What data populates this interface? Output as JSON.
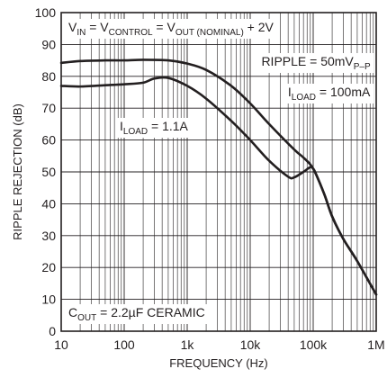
{
  "chart_data": {
    "type": "line",
    "xlabel": "FREQUENCY (Hz)",
    "ylabel": "RIPPLE REJECTION (dB)",
    "x_scale": "log",
    "xlim": [
      10,
      1000000
    ],
    "ylim": [
      0,
      100
    ],
    "grid": true,
    "x_ticks": [
      {
        "value": 10,
        "label": "10"
      },
      {
        "value": 100,
        "label": "100"
      },
      {
        "value": 1000,
        "label": "1k"
      },
      {
        "value": 10000,
        "label": "10k"
      },
      {
        "value": 100000,
        "label": "100k"
      },
      {
        "value": 1000000,
        "label": "1M"
      }
    ],
    "y_ticks": [
      {
        "value": 0,
        "label": "0"
      },
      {
        "value": 10,
        "label": "10"
      },
      {
        "value": 20,
        "label": "20"
      },
      {
        "value": 30,
        "label": "30"
      },
      {
        "value": 40,
        "label": "40"
      },
      {
        "value": 50,
        "label": "50"
      },
      {
        "value": 60,
        "label": "60"
      },
      {
        "value": 70,
        "label": "70"
      },
      {
        "value": 80,
        "label": "80"
      },
      {
        "value": 90,
        "label": "90"
      },
      {
        "value": 100,
        "label": "100"
      }
    ],
    "annotations": {
      "conditions": {
        "parts": [
          {
            "t": "V",
            "sub": false
          },
          {
            "t": "IN",
            "sub": true
          },
          {
            "t": " = V",
            "sub": false
          },
          {
            "t": "CONTROL",
            "sub": true
          },
          {
            "t": " = V",
            "sub": false
          },
          {
            "t": "OUT (NOMINAL)",
            "sub": true
          },
          {
            "t": " + 2V",
            "sub": false
          }
        ]
      },
      "ripple": {
        "parts": [
          {
            "t": "RIPPLE = 50mV",
            "sub": false
          },
          {
            "t": "P–P",
            "sub": true
          }
        ]
      },
      "iload_100ma": {
        "parts": [
          {
            "t": "I",
            "sub": false
          },
          {
            "t": "LOAD",
            "sub": true
          },
          {
            "t": " = 100mA",
            "sub": false
          }
        ]
      },
      "iload_1_1a": {
        "parts": [
          {
            "t": "I",
            "sub": false
          },
          {
            "t": "LOAD",
            "sub": true
          },
          {
            "t": " = 1.1A",
            "sub": false
          }
        ]
      },
      "cout": {
        "parts": [
          {
            "t": "C",
            "sub": false
          },
          {
            "t": "OUT",
            "sub": true
          },
          {
            "t": " = 2.2µF CERAMIC",
            "sub": false
          }
        ]
      }
    },
    "series": [
      {
        "name": "ILOAD = 100mA",
        "x": [
          10,
          20,
          50,
          100,
          200,
          500,
          1000,
          2000,
          5000,
          10000,
          20000,
          50000,
          70000,
          100000,
          150000,
          200000,
          300000,
          500000,
          1000000
        ],
        "y": [
          84.2,
          84.8,
          85.0,
          85.0,
          85.2,
          85.0,
          84.0,
          82.0,
          77.0,
          71.5,
          65.0,
          57.0,
          54.5,
          51.0,
          43.0,
          36.0,
          29.0,
          22.0,
          11.5
        ]
      },
      {
        "name": "ILOAD = 1.1A",
        "x": [
          10,
          20,
          50,
          100,
          200,
          300,
          500,
          1000,
          2000,
          5000,
          10000,
          20000,
          40000,
          50000,
          70000,
          90000,
          100000,
          110000,
          150000,
          200000,
          300000,
          500000,
          1000000
        ],
        "y": [
          77.0,
          76.8,
          77.2,
          77.5,
          78.0,
          79.3,
          79.5,
          77.0,
          73.0,
          66.0,
          60.0,
          53.5,
          48.5,
          48.3,
          50.0,
          51.5,
          51.0,
          49.5,
          43.0,
          36.0,
          29.0,
          22.0,
          11.5
        ]
      }
    ]
  }
}
